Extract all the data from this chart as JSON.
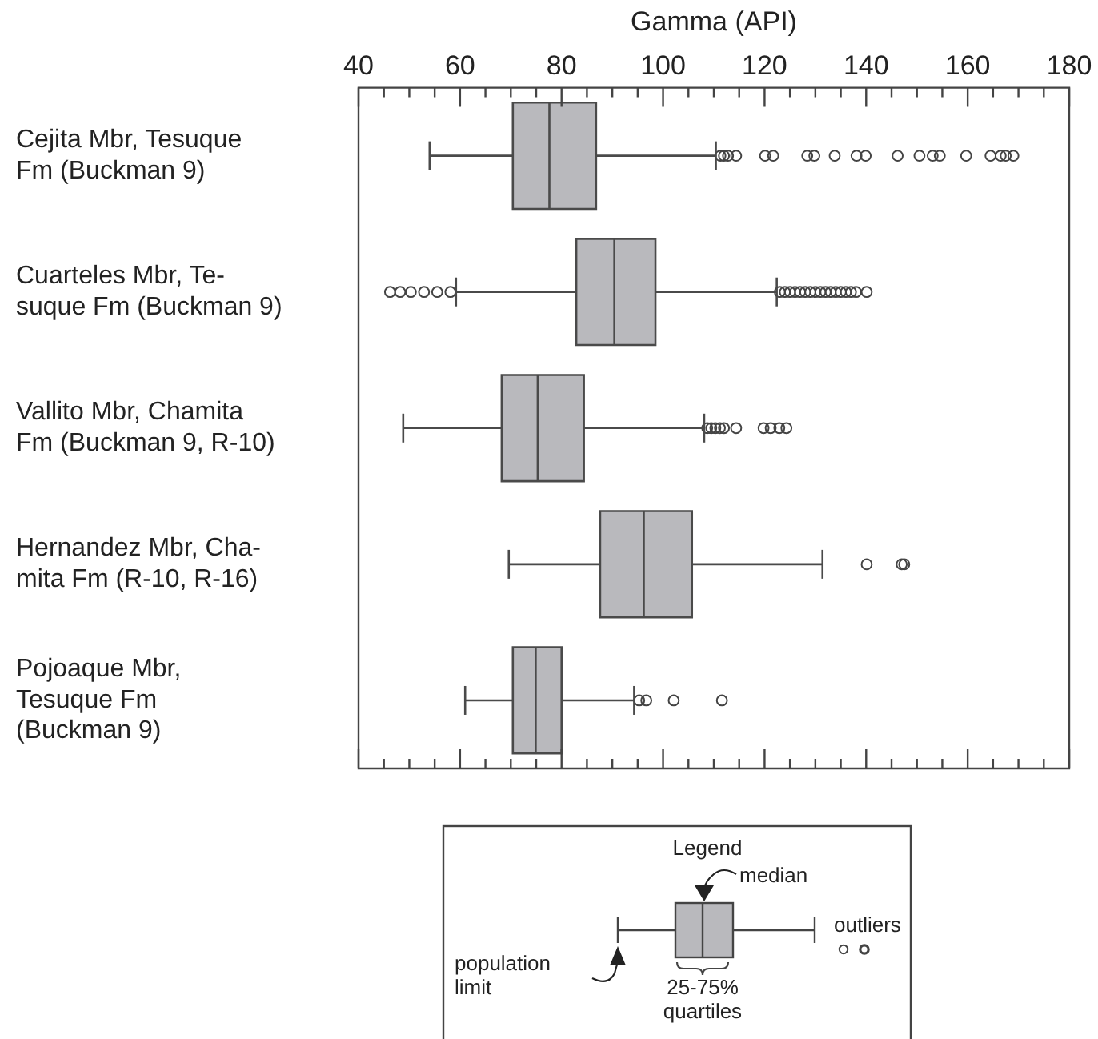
{
  "chart_data": {
    "type": "box",
    "orientation": "horizontal",
    "xlabel": "Gamma (API)",
    "categories": [
      "Cejita Mbr, Tesuque\nFm (Buckman 9)",
      "Cuarteles Mbr, Te-\nsuque Fm (Buckman 9)",
      "Vallito Mbr, Chamita\nFm (Buckman 9, R-10)",
      "Hernandez Mbr, Cha-\nmita Fm (R-10, R-16)",
      "Pojoaque Mbr,\nTesuque Fm\n(Buckman 9)"
    ],
    "color": "#b9b9bd",
    "boxes": [
      {
        "low": 54,
        "q1": 70.4,
        "median": 77.6,
        "q3": 86.8,
        "high": 110.4,
        "outliers": [
          111.3,
          112,
          112.8,
          114.4,
          120.1,
          121.7,
          128.4,
          129.8,
          133.8,
          138.1,
          139.9,
          146.2,
          150.5,
          153.1,
          154.5,
          159.7,
          164.5,
          166.5,
          167.5,
          169
        ]
      },
      {
        "low": 59.2,
        "q1": 82.9,
        "median": 90.4,
        "q3": 98.5,
        "high": 122.4,
        "outliers": [
          46.2,
          48.2,
          50.3,
          52.9,
          55.5,
          58.1,
          123,
          124,
          125,
          126,
          127,
          128,
          129,
          130,
          131,
          132,
          133,
          134,
          135,
          136,
          137,
          138,
          140.1
        ]
      },
      {
        "low": 48.8,
        "q1": 68.2,
        "median": 75.3,
        "q3": 84.4,
        "high": 108.1,
        "outliers": [
          108.7,
          109.5,
          110.3,
          111.2,
          112,
          114.4,
          119.8,
          121.2,
          122.9,
          124.3
        ]
      },
      {
        "low": 69.6,
        "q1": 87.6,
        "median": 96.2,
        "q3": 105.7,
        "high": 131.4,
        "outliers": [
          140.1,
          147,
          147.5
        ]
      },
      {
        "low": 61,
        "q1": 70.4,
        "median": 74.9,
        "q3": 80,
        "high": 94.3,
        "outliers": [
          95.3,
          96.7,
          102.1,
          111.6
        ]
      }
    ],
    "xlim": [
      40,
      180
    ],
    "xticks": [
      40,
      {
        "value": 45,
        "label": null
      },
      {
        "value": 50,
        "label": null
      },
      {
        "value": 55,
        "label": null
      },
      60,
      {
        "value": 65,
        "label": null
      },
      {
        "value": 70,
        "label": null
      },
      {
        "value": 75,
        "label": null
      },
      80,
      {
        "value": 85,
        "label": null
      },
      {
        "value": 90,
        "label": null
      },
      {
        "value": 95,
        "label": null
      },
      100,
      {
        "value": 105,
        "label": null
      },
      {
        "value": 110,
        "label": null
      },
      {
        "value": 115,
        "label": null
      },
      120,
      {
        "value": 125,
        "label": null
      },
      {
        "value": 130,
        "label": null
      },
      {
        "value": 135,
        "label": null
      },
      140,
      {
        "value": 145,
        "label": null
      },
      {
        "value": 150,
        "label": null
      },
      {
        "value": 155,
        "label": null
      },
      160,
      {
        "value": 165,
        "label": null
      },
      {
        "value": 170,
        "label": null
      },
      {
        "value": 175,
        "label": null
      },
      180
    ],
    "grid": false,
    "legend": false,
    "marker": "circle",
    "annotations": [
      "Legend",
      "median",
      "outliers",
      "population\nlimit",
      "25-75%\nquartiles"
    ]
  }
}
